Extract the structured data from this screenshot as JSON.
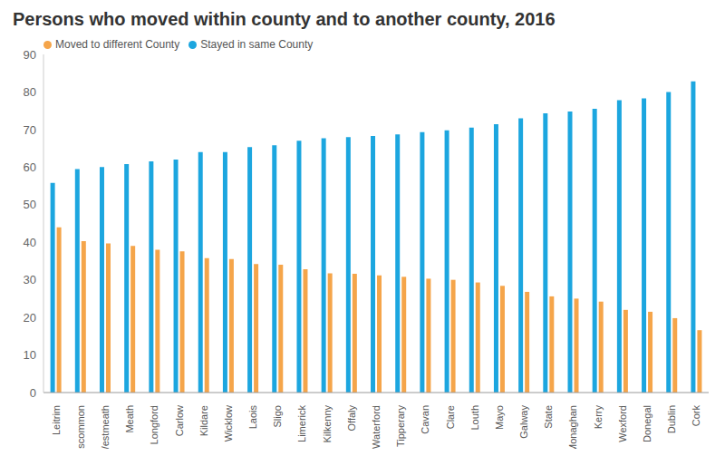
{
  "chart_data": {
    "type": "bar",
    "title": "Persons who moved within county and to another county, 2016",
    "categories": [
      "Leitrim",
      "Roscommon",
      "Westmeath",
      "Meath",
      "Longford",
      "Carlow",
      "Kildare",
      "Wicklow",
      "Laois",
      "Sligo",
      "Limerick",
      "Kilkenny",
      "Offaly",
      "Waterford",
      "Tipperary",
      "Cavan",
      "Clare",
      "Louth",
      "Mayo",
      "Galway",
      "State",
      "Monaghan",
      "Kerry",
      "Wexford",
      "Donegal",
      "Dublin",
      "Cork"
    ],
    "series": [
      {
        "name": "Stayed in same County",
        "color": "#1ca6df",
        "values": [
          55.8,
          59.5,
          60,
          60.8,
          61.5,
          62,
          64,
          64,
          65.3,
          65.8,
          67,
          67.7,
          68,
          68.3,
          68.7,
          69.3,
          69.8,
          70.5,
          71.4,
          73,
          74.3,
          74.8,
          75.5,
          77.8,
          78.3,
          80,
          82.8
        ]
      },
      {
        "name": "Moved to different County",
        "color": "#f5a54a",
        "values": [
          44,
          40.3,
          39.7,
          39,
          38,
          37.6,
          35.8,
          35.5,
          34.2,
          34,
          32.8,
          31.7,
          31.6,
          31.2,
          30.8,
          30.3,
          30,
          29.3,
          28.4,
          26.8,
          25.6,
          25,
          24.2,
          22,
          21.5,
          19.8,
          16.6
        ]
      }
    ],
    "ylim": [
      0,
      90
    ],
    "yticks": [
      0,
      10,
      20,
      30,
      40,
      50,
      60,
      70,
      80,
      90
    ],
    "grid": false,
    "legend": "upper left"
  }
}
